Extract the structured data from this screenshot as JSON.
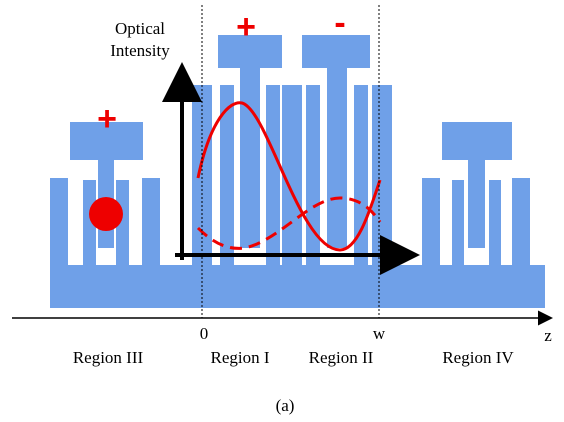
{
  "axis_title": [
    "Optical",
    "Intensity"
  ],
  "signs": {
    "region_iii": "+",
    "region_i": "+",
    "region_ii": "-"
  },
  "axis_labels": {
    "origin": "0",
    "width": "w",
    "axis": "z"
  },
  "regions": [
    "Region III",
    "Region I",
    "Region II",
    "Region IV"
  ],
  "caption": "(a)"
}
